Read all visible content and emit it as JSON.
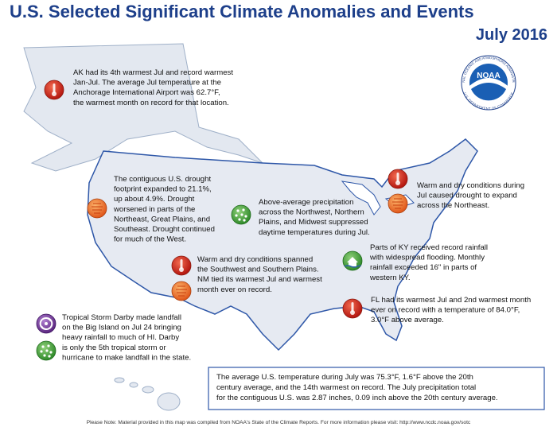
{
  "header": {
    "title": "U.S. Selected Significant Climate Anomalies and Events",
    "subtitle": "July 2016"
  },
  "logo": {
    "name": "NOAA",
    "ring_top": "NATIONAL OCEANIC AND ATMOSPHERIC ADMINISTRATION",
    "ring_bottom": "U.S. DEPARTMENT OF COMMERCE"
  },
  "annotations": [
    {
      "lines": [
        "AK had its 4th warmest Jul and record warmest",
        "Jan-Jul. The average Jul temperature at the",
        "Anchorage International Airport was 62.7°F,",
        "the warmest month on record for that location."
      ]
    },
    {
      "lines": [
        "The contiguous U.S. drought",
        "footprint expanded to 21.1%,",
        "up about 4.9%. Drought",
        "worsened in parts of the",
        "Northeast, Great Plains, and",
        "Southeast. Drought continued",
        "for much of the West."
      ]
    },
    {
      "lines": [
        "Above-average precipitation",
        "across the Northwest, Northern",
        "Plains, and Midwest suppressed",
        "daytime temperatures during Jul."
      ]
    },
    {
      "lines": [
        "Warm and dry conditions during",
        "Jul caused drought to expand",
        "across the Northeast."
      ]
    },
    {
      "lines": [
        "Parts of KY received record rainfall",
        "with widespread flooding. Monthly",
        "rainfall exceeded 16\" in parts of",
        "western KY."
      ]
    },
    {
      "lines": [
        "Warm and dry conditions spanned",
        "the Southwest and Southern Plains.",
        "NM tied its warmest Jul and warmest",
        "month ever on record."
      ]
    },
    {
      "lines": [
        "FL had its warmest Jul and 2nd warmest month",
        "ever on record with a temperature of 84.0°F,",
        "3.0°F above average."
      ]
    },
    {
      "lines": [
        "Tropical Storm Darby made landfall",
        "on the Big Island on Jul 24 bringing",
        "heavy rainfall to much of HI. Darby",
        "is only the 5th tropical storm or",
        "hurricane to make landfall in the state."
      ]
    }
  ],
  "summary": {
    "lines": [
      "The average U.S. temperature during July was 75.3°F, 1.6°F above the 20th",
      "century average, and the 14th warmest on record.  The July precipitation total",
      "for the contiguous U.S. was 2.87 inches, 0.09 inch above the 20th century average."
    ]
  },
  "footer": "Please Note: Material provided in this map was compiled from NOAA's State of the Climate Reports. For more information please visit: http://www.ncdc.noaa.gov/sotc"
}
